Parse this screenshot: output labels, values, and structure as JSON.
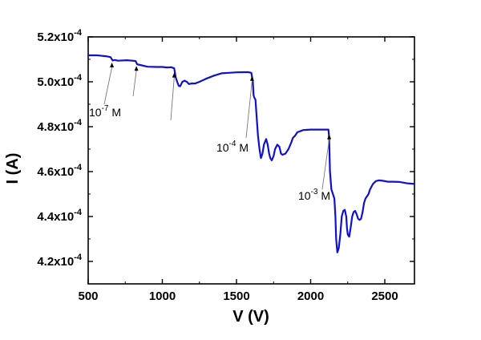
{
  "chart_data": {
    "type": "line",
    "xlabel": "V (V)",
    "ylabel": "I (A)",
    "xlim": [
      500,
      2700
    ],
    "ylim": [
      0.00041,
      0.00052
    ],
    "grid": false,
    "x_ticks": [
      500,
      1000,
      1500,
      2000,
      2500
    ],
    "x_tick_labels": [
      "500",
      "1000",
      "1500",
      "2000",
      "2500"
    ],
    "y_ticks": [
      0.00042,
      0.00044,
      0.00046,
      0.00048,
      0.0005,
      0.00052
    ],
    "y_tick_labels": [
      {
        "mantissa": "4.2x10",
        "exponent": "-4"
      },
      {
        "mantissa": "4.4x10",
        "exponent": "-4"
      },
      {
        "mantissa": "4.6x10",
        "exponent": "-4"
      },
      {
        "mantissa": "4.8x10",
        "exponent": "-4"
      },
      {
        "mantissa": "5.0x10",
        "exponent": "-4"
      },
      {
        "mantissa": "5.2x10",
        "exponent": "-4"
      }
    ],
    "series": [
      {
        "color": "#1010d0",
        "x": [
          500,
          560,
          620,
          650,
          665,
          680,
          700,
          760,
          800,
          820,
          830,
          850,
          900,
          960,
          1000,
          1030,
          1060,
          1080,
          1090,
          1100,
          1110,
          1120,
          1135,
          1150,
          1165,
          1180,
          1200,
          1220,
          1250,
          1300,
          1350,
          1400,
          1450,
          1500,
          1550,
          1580,
          1600,
          1610,
          1615,
          1620,
          1628,
          1635,
          1645,
          1655,
          1665,
          1675,
          1685,
          1700,
          1710,
          1720,
          1728,
          1738,
          1750,
          1760,
          1775,
          1790,
          1800,
          1810,
          1830,
          1850,
          1870,
          1880,
          1895,
          1910,
          1950,
          2000,
          2050,
          2100,
          2120,
          2125,
          2130,
          2140,
          2150,
          2160,
          2167,
          2172,
          2180,
          2190,
          2200,
          2210,
          2220,
          2230,
          2240,
          2245,
          2250,
          2260,
          2270,
          2280,
          2290,
          2300,
          2310,
          2320,
          2330,
          2340,
          2350,
          2360,
          2370,
          2380,
          2390,
          2400,
          2420,
          2440,
          2460,
          2490,
          2520,
          2550,
          2600,
          2650,
          2700
        ],
        "y": [
          0.0005118,
          0.0005118,
          0.0005114,
          0.000511,
          0.0005095,
          0.0005097,
          0.0005094,
          0.0005096,
          0.0005094,
          0.0005092,
          0.0005078,
          0.0005075,
          0.0005067,
          0.0005066,
          0.0005066,
          0.0005064,
          0.0005065,
          0.000506,
          0.000502,
          0.0005,
          0.0004982,
          0.000498,
          0.0005,
          0.0005005,
          0.0005,
          0.000499,
          0.0004993,
          0.0004992,
          0.0005,
          0.0005015,
          0.0005028,
          0.0005038,
          0.000504,
          0.0005042,
          0.0005043,
          0.0005043,
          0.000504,
          0.0005,
          0.000494,
          0.000493,
          0.000492,
          0.000485,
          0.000476,
          0.00047,
          0.000466,
          0.000468,
          0.000472,
          0.0004745,
          0.000472,
          0.000468,
          0.000466,
          0.000465,
          0.000467,
          0.00047,
          0.000472,
          0.000471,
          0.000468,
          0.0004675,
          0.000468,
          0.00047,
          0.000473,
          0.000475,
          0.000476,
          0.0004775,
          0.0004785,
          0.0004787,
          0.0004787,
          0.0004787,
          0.0004787,
          0.000475,
          0.00046,
          0.000452,
          0.00045,
          0.000448,
          0.00044,
          0.00043,
          0.000424,
          0.000426,
          0.000432,
          0.00044,
          0.0004425,
          0.000443,
          0.00044,
          0.000435,
          0.000432,
          0.000431,
          0.000435,
          0.00044,
          0.000442,
          0.0004425,
          0.000441,
          0.000439,
          0.0004385,
          0.000439,
          0.000442,
          0.000446,
          0.000448,
          0.000449,
          0.00045,
          0.000452,
          0.0004545,
          0.0004558,
          0.0004561,
          0.0004559,
          0.0004555,
          0.0004555,
          0.0004554,
          0.0004548,
          0.0004545
        ]
      }
    ],
    "annotations": [
      {
        "base": "10",
        "exponent": "-7",
        "unit": " M"
      },
      {
        "base": "10",
        "exponent": "-4",
        "unit": " M"
      },
      {
        "base": "10",
        "exponent": "-3",
        "unit": " M"
      }
    ],
    "arrows": [
      {
        "x": 660,
        "y": 0.00051
      },
      {
        "x": 825,
        "y": 0.0005085
      },
      {
        "x": 1080,
        "y": 0.0005055
      },
      {
        "x": 1605,
        "y": 0.000504
      },
      {
        "x": 2125,
        "y": 0.000478
      }
    ]
  }
}
